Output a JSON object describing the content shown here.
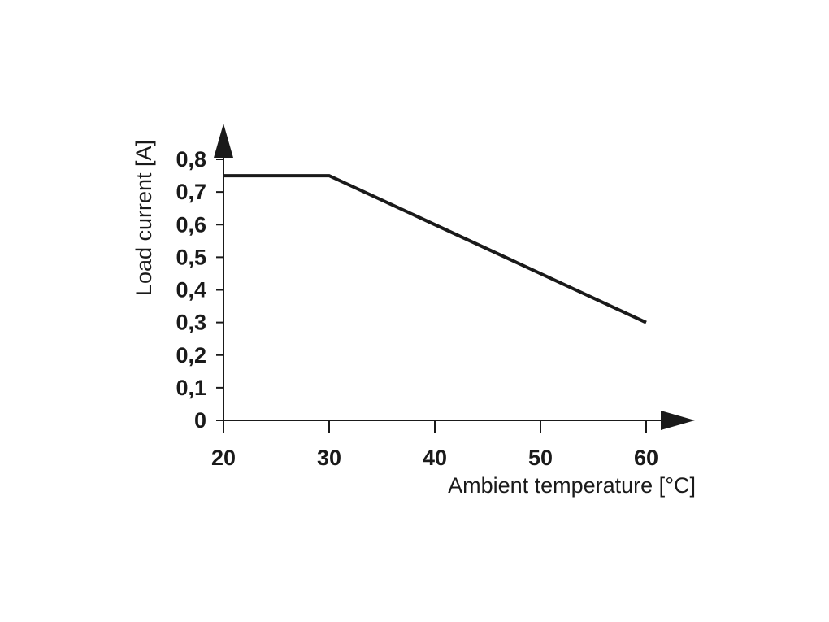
{
  "chart_data": {
    "type": "line",
    "title": "",
    "xlabel": "Ambient temperature [°C]",
    "ylabel": "Load current [A]",
    "xlim": [
      20,
      60
    ],
    "ylim": [
      0,
      0.8
    ],
    "x_ticks": [
      20,
      30,
      40,
      50,
      60
    ],
    "x_tick_labels": [
      "20",
      "30",
      "40",
      "50",
      "60"
    ],
    "y_ticks": [
      0,
      0.1,
      0.2,
      0.3,
      0.4,
      0.5,
      0.6,
      0.7,
      0.8
    ],
    "y_tick_labels": [
      "0",
      "0,1",
      "0,2",
      "0,3",
      "0,4",
      "0,5",
      "0,6",
      "0,7",
      "0,8"
    ],
    "grid": false,
    "series": [
      {
        "x": [
          20,
          30,
          60
        ],
        "y": [
          0.75,
          0.75,
          0.3
        ]
      }
    ],
    "color": "#1a1a1a"
  }
}
